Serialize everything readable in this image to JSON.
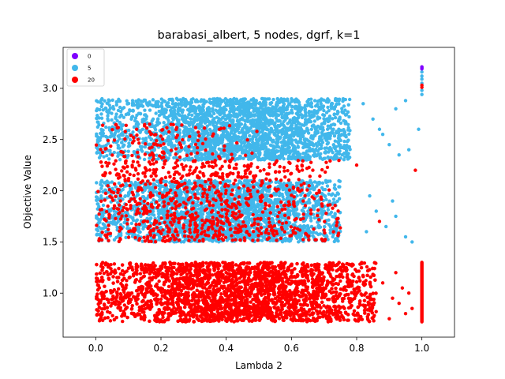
{
  "chart_data": {
    "type": "scatter",
    "title": "barabasi_albert, 5 nodes, dgrf, k=1",
    "xlabel": "Lambda 2",
    "ylabel": "Objective Value",
    "xlim": [
      -0.1,
      1.1
    ],
    "ylim": [
      0.57,
      3.4
    ],
    "x_ticks": [
      0.0,
      0.2,
      0.4,
      0.6,
      0.8,
      1.0
    ],
    "x_tick_labels": [
      "0.0",
      "0.2",
      "0.4",
      "0.6",
      "0.8",
      "1.0"
    ],
    "y_ticks": [
      1.0,
      1.5,
      2.0,
      2.5,
      3.0
    ],
    "y_tick_labels": [
      "1.0",
      "1.5",
      "2.0",
      "2.5",
      "3.0"
    ],
    "grid": false,
    "legend_position": "top-left",
    "series": [
      {
        "name": "0",
        "color": "#7f00ff",
        "points": [
          [
            1.0,
            3.2
          ],
          [
            1.0,
            3.19
          ],
          [
            1.0,
            3.21
          ]
        ]
      },
      {
        "name": "5",
        "color": "#41b7eb",
        "clusters": [
          {
            "x_range": [
              0.0,
              0.78
            ],
            "y_range": [
              2.3,
              2.9
            ],
            "count": 2600,
            "density_center_x": 0.45
          },
          {
            "x_range": [
              0.0,
              0.75
            ],
            "y_range": [
              1.5,
              2.1
            ],
            "count": 2600,
            "density_center_x": 0.4
          }
        ],
        "sparse_points": [
          [
            0.82,
            2.85
          ],
          [
            0.85,
            2.7
          ],
          [
            0.87,
            2.6
          ],
          [
            0.9,
            2.45
          ],
          [
            0.92,
            2.8
          ],
          [
            0.95,
            2.88
          ],
          [
            0.93,
            2.35
          ],
          [
            0.88,
            2.55
          ],
          [
            0.96,
            2.4
          ],
          [
            0.84,
            1.95
          ],
          [
            0.86,
            1.8
          ],
          [
            0.89,
            1.65
          ],
          [
            0.92,
            1.75
          ],
          [
            0.95,
            1.55
          ],
          [
            0.91,
            1.9
          ],
          [
            0.83,
            1.6
          ],
          [
            0.97,
            1.5
          ],
          [
            0.99,
            2.6
          ],
          [
            1.0,
            3.12
          ],
          [
            1.0,
            3.05
          ],
          [
            1.0,
            2.98
          ],
          [
            1.0,
            2.94
          ],
          [
            1.0,
            3.16
          ],
          [
            1.0,
            3.09
          ]
        ]
      },
      {
        "name": "20",
        "color": "#ff0000",
        "clusters": [
          {
            "x_range": [
              0.0,
              0.86
            ],
            "y_range": [
              0.72,
              1.3
            ],
            "count": 4500,
            "density_center_x": 0.45
          },
          {
            "x_range": [
              0.0,
              0.75
            ],
            "y_range": [
              1.5,
              2.3
            ],
            "count": 900,
            "density_center_x": 0.3
          },
          {
            "x_range": [
              0.0,
              0.5
            ],
            "y_range": [
              2.3,
              2.65
            ],
            "count": 120,
            "density_center_x": 0.2
          }
        ],
        "sparse_points": [
          [
            0.9,
            0.75
          ],
          [
            0.93,
            0.9
          ],
          [
            0.95,
            0.8
          ],
          [
            0.88,
            1.1
          ],
          [
            0.92,
            1.2
          ],
          [
            0.97,
            0.85
          ],
          [
            0.96,
            1.0
          ],
          [
            0.91,
            0.95
          ],
          [
            0.94,
            1.05
          ],
          [
            0.98,
            2.2
          ],
          [
            0.87,
            1.7
          ],
          [
            0.8,
            2.25
          ],
          [
            1.0,
            3.03
          ],
          [
            1.0,
            3.01
          ]
        ],
        "vertical_line": {
          "x": 1.0,
          "y_range": [
            0.72,
            1.3
          ]
        }
      }
    ]
  }
}
